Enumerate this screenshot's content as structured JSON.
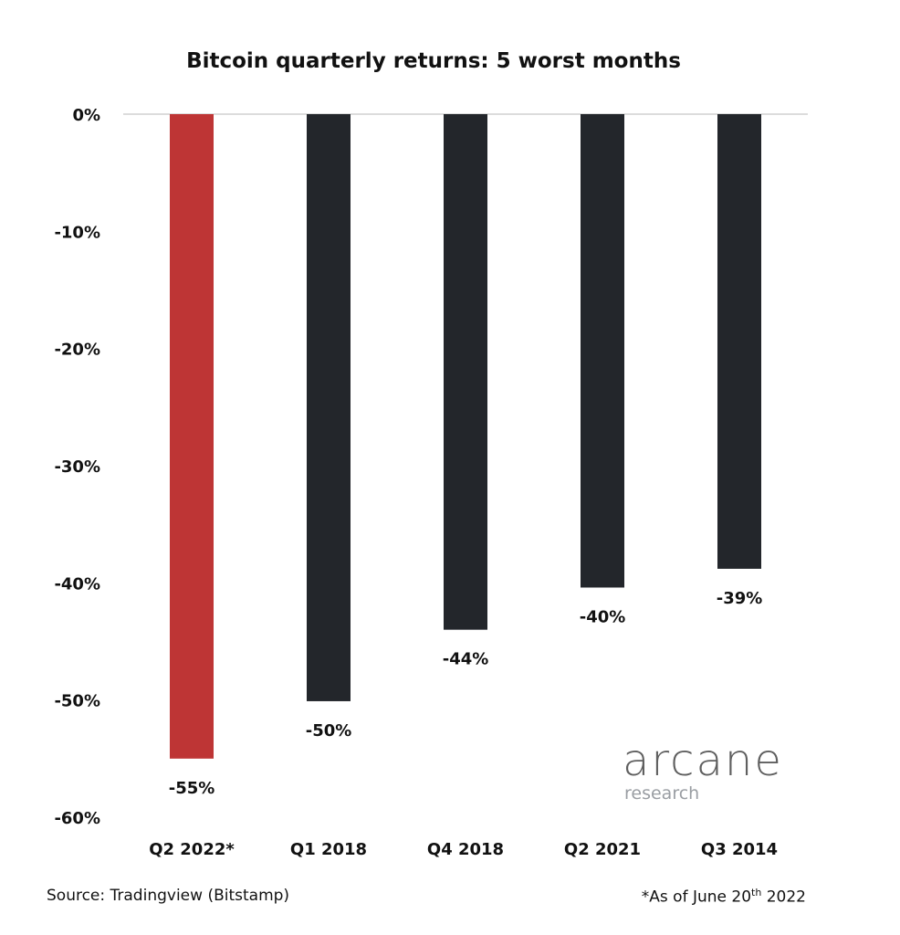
{
  "chart_data": {
    "type": "bar",
    "title": "Bitcoin quarterly returns: 5 worst months",
    "categories": [
      "Q2 2022*",
      "Q1 2018",
      "Q4 2018",
      "Q2 2021",
      "Q3 2014"
    ],
    "values": [
      -55,
      -50.1,
      -44,
      -40.4,
      -38.8
    ],
    "data_labels": [
      "-55%",
      "-50%",
      "-44%",
      "-40%",
      "-39%"
    ],
    "bar_colors": [
      "#be3535",
      "#23262b",
      "#23262b",
      "#23262b",
      "#23262b"
    ],
    "ylim": [
      -60,
      0
    ],
    "yticks": [
      0,
      -10,
      -20,
      -30,
      -40,
      -50,
      -60
    ],
    "ytick_labels": [
      "0%",
      "-10%",
      "-20%",
      "-30%",
      "-40%",
      "-50%",
      "-60%"
    ],
    "xlabel": "",
    "ylabel": "",
    "grid": false,
    "zero_line_color": "#dcdcdc"
  },
  "footer": {
    "source": "Source: Tradingview (Bitstamp)",
    "note_main": "*As of June 20",
    "note_sup": "th",
    "note_end": " 2022"
  },
  "logo": {
    "name": "arcane",
    "sub": "research"
  }
}
